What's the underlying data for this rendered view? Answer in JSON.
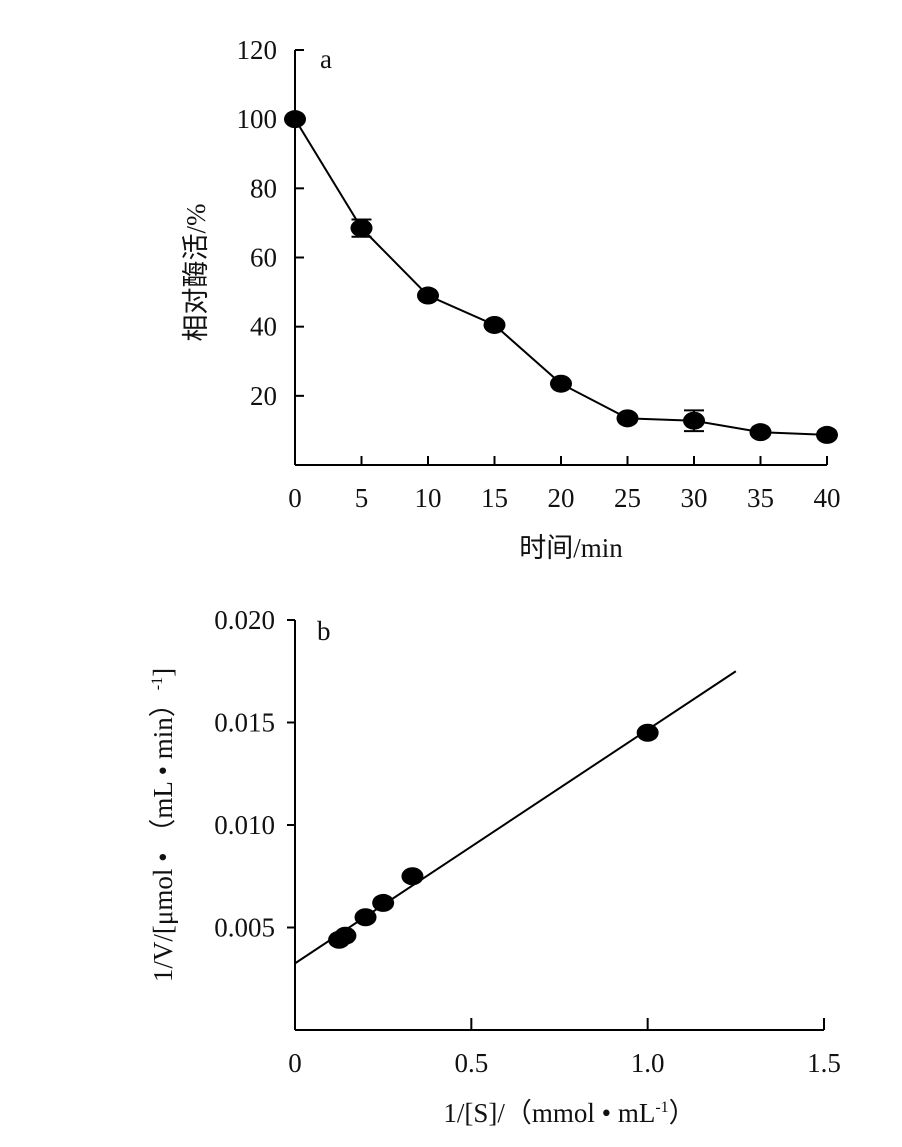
{
  "chart_data": [
    {
      "type": "line",
      "panel_label": "a",
      "xlabel": "时间/min",
      "ylabel": "相对酶活/%",
      "xlim": [
        0,
        40
      ],
      "ylim": [
        0,
        120
      ],
      "xticks": [
        "0",
        "5",
        "10",
        "15",
        "20",
        "25",
        "30",
        "35",
        "40"
      ],
      "yticks": [
        "20",
        "40",
        "60",
        "80",
        "100",
        "120"
      ],
      "x": [
        0,
        5,
        10,
        15,
        20,
        25,
        30,
        35,
        40
      ],
      "y": [
        100,
        68.5,
        49,
        40.5,
        23.5,
        13.5,
        12.8,
        9.5,
        8.7
      ],
      "error": [
        0,
        2.5,
        0,
        0,
        0,
        0,
        3,
        0,
        0
      ],
      "color": "#000000"
    },
    {
      "type": "scatter",
      "panel_label": "b",
      "xlabel": "1/[S]/（mmol • mL",
      "xlabel_sup": "-1",
      "xlabel_end": "）",
      "ylabel": "1/V/[μmol • （mL • min）",
      "ylabel_sup": "-1",
      "ylabel_end": "]",
      "xlim": [
        0,
        1.5
      ],
      "ylim": [
        0,
        0.02
      ],
      "xticks": [
        "0",
        "0.5",
        "1.0",
        "1.5"
      ],
      "yticks": [
        "0.005",
        "0.010",
        "0.015",
        "0.020"
      ],
      "x": [
        0.125,
        0.143,
        0.2,
        0.25,
        0.333,
        1.0
      ],
      "y": [
        0.0044,
        0.0046,
        0.0055,
        0.0062,
        0.0075,
        0.0145
      ],
      "fit_line": {
        "intercept": 0.00325,
        "slope": 0.0114,
        "x_range": [
          0,
          1.25
        ]
      },
      "color": "#000000"
    }
  ]
}
